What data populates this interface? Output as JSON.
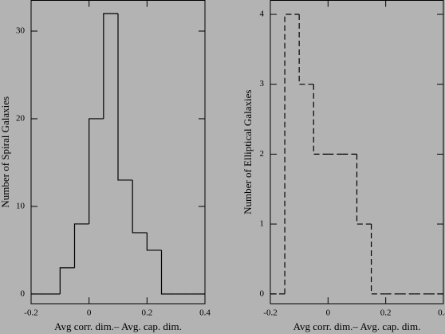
{
  "chart_data": [
    {
      "type": "histogram",
      "xlabel": "Avg corr. dim.– Avg. cap. dim.",
      "ylabel": "Number of Spiral Galaxies",
      "bins": [
        -0.2,
        -0.15,
        -0.1,
        -0.05,
        0,
        0.05,
        0.1,
        0.15,
        0.2,
        0.25,
        0.3,
        0.35,
        0.4
      ],
      "values": [
        0,
        0,
        3,
        8,
        20,
        32,
        13,
        7,
        5,
        0,
        0,
        0
      ],
      "color": "#000000",
      "linestyle": "solid",
      "xlim": [
        -0.2,
        0.4
      ],
      "xticks": [
        -0.2,
        0,
        0.2,
        0.4
      ],
      "ylim": [
        -1.1,
        33.5
      ],
      "yticks": [
        0,
        10,
        20,
        30
      ]
    },
    {
      "type": "histogram",
      "xlabel": "Avg corr. dim.– Avg. cap. dim.",
      "ylabel": "Number of Elliptical Galaxies",
      "bins": [
        -0.2,
        -0.15,
        -0.1,
        -0.05,
        0,
        0.05,
        0.1,
        0.15,
        0.2,
        0.25,
        0.3,
        0.35,
        0.4
      ],
      "values": [
        0,
        4,
        3,
        2,
        2,
        2,
        1,
        0,
        0,
        0,
        0,
        0
      ],
      "color": "#000000",
      "linestyle": "dashed",
      "xlim": [
        -0.2,
        0.4
      ],
      "xticks": [
        -0.2,
        0,
        0.2,
        0.4
      ],
      "ylim": [
        -0.14,
        4.2
      ],
      "yticks": [
        0,
        1,
        2,
        3,
        4
      ]
    }
  ]
}
